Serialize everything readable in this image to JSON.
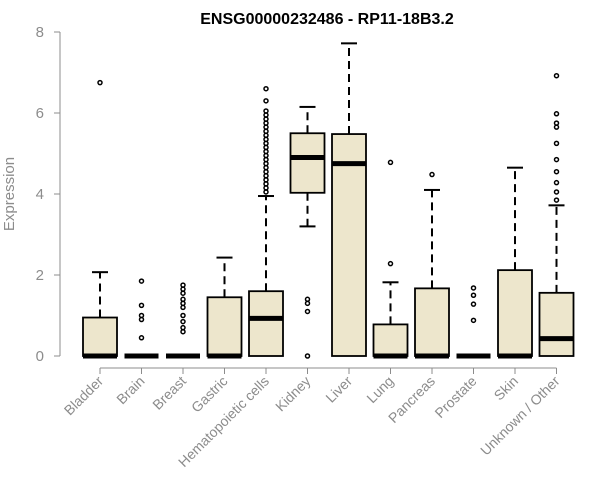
{
  "chart_data": {
    "type": "boxplot",
    "title": "ENSG00000232486 - RP11-18B3.2",
    "xlabel": "",
    "ylabel": "Expression",
    "ylim": [
      0,
      8
    ],
    "yticks": [
      0,
      2,
      4,
      6,
      8
    ],
    "box_fill": "#ede6cc",
    "categories": [
      "Bladder",
      "Brain",
      "Breast",
      "Gastric",
      "Hematopoietic cells",
      "Kidney",
      "Liver",
      "Lung",
      "Pancreas",
      "Prostate",
      "Skin",
      "Unknown / Other"
    ],
    "boxes": [
      {
        "q1": 0,
        "median": 0,
        "q3": 0.95,
        "whisker_low": 0,
        "whisker_high": 2.07,
        "outliers": [
          6.75
        ]
      },
      {
        "q1": 0,
        "median": 0,
        "q3": 0,
        "whisker_low": 0,
        "whisker_high": 0,
        "outliers": [
          1.85,
          1.25,
          1.0,
          0.9,
          0.45
        ]
      },
      {
        "q1": 0,
        "median": 0,
        "q3": 0,
        "whisker_low": 0,
        "whisker_high": 0,
        "outliers": [
          1.75,
          1.65,
          1.55,
          1.4,
          1.3,
          1.2,
          1.0,
          0.85,
          0.7,
          0.6
        ]
      },
      {
        "q1": 0,
        "median": 0,
        "q3": 1.45,
        "whisker_low": 0,
        "whisker_high": 2.43,
        "outliers": []
      },
      {
        "q1": 0,
        "median": 0.93,
        "q3": 1.6,
        "whisker_low": 0,
        "whisker_high": 3.95,
        "outliers": [
          6.6,
          6.3,
          6.05,
          5.95,
          5.85,
          5.75,
          5.65,
          5.55,
          5.45,
          5.35,
          5.25,
          5.15,
          5.05,
          4.95,
          4.85,
          4.75,
          4.65,
          4.55,
          4.45,
          4.35,
          4.25,
          4.15,
          4.05
        ]
      },
      {
        "q1": 4.03,
        "median": 4.9,
        "q3": 5.5,
        "whisker_low": 3.2,
        "whisker_high": 6.15,
        "outliers": [
          1.4,
          1.3,
          1.1,
          0
        ]
      },
      {
        "q1": 0,
        "median": 4.75,
        "q3": 5.48,
        "whisker_low": 0,
        "whisker_high": 7.72,
        "outliers": []
      },
      {
        "q1": 0,
        "median": 0,
        "q3": 0.78,
        "whisker_low": 0,
        "whisker_high": 1.82,
        "outliers": [
          4.78,
          2.28
        ]
      },
      {
        "q1": 0,
        "median": 0,
        "q3": 1.67,
        "whisker_low": 0,
        "whisker_high": 4.1,
        "outliers": [
          4.48
        ]
      },
      {
        "q1": 0,
        "median": 0,
        "q3": 0,
        "whisker_low": 0,
        "whisker_high": 0,
        "outliers": [
          1.68,
          1.5,
          1.28,
          0.88
        ]
      },
      {
        "q1": 0,
        "median": 0,
        "q3": 2.12,
        "whisker_low": 0,
        "whisker_high": 4.65,
        "outliers": []
      },
      {
        "q1": 0,
        "median": 0.43,
        "q3": 1.56,
        "whisker_low": 0,
        "whisker_high": 3.72,
        "outliers": [
          6.92,
          5.98,
          5.75,
          5.65,
          5.25,
          4.85,
          4.55,
          4.28,
          4.05,
          3.85
        ]
      }
    ]
  }
}
